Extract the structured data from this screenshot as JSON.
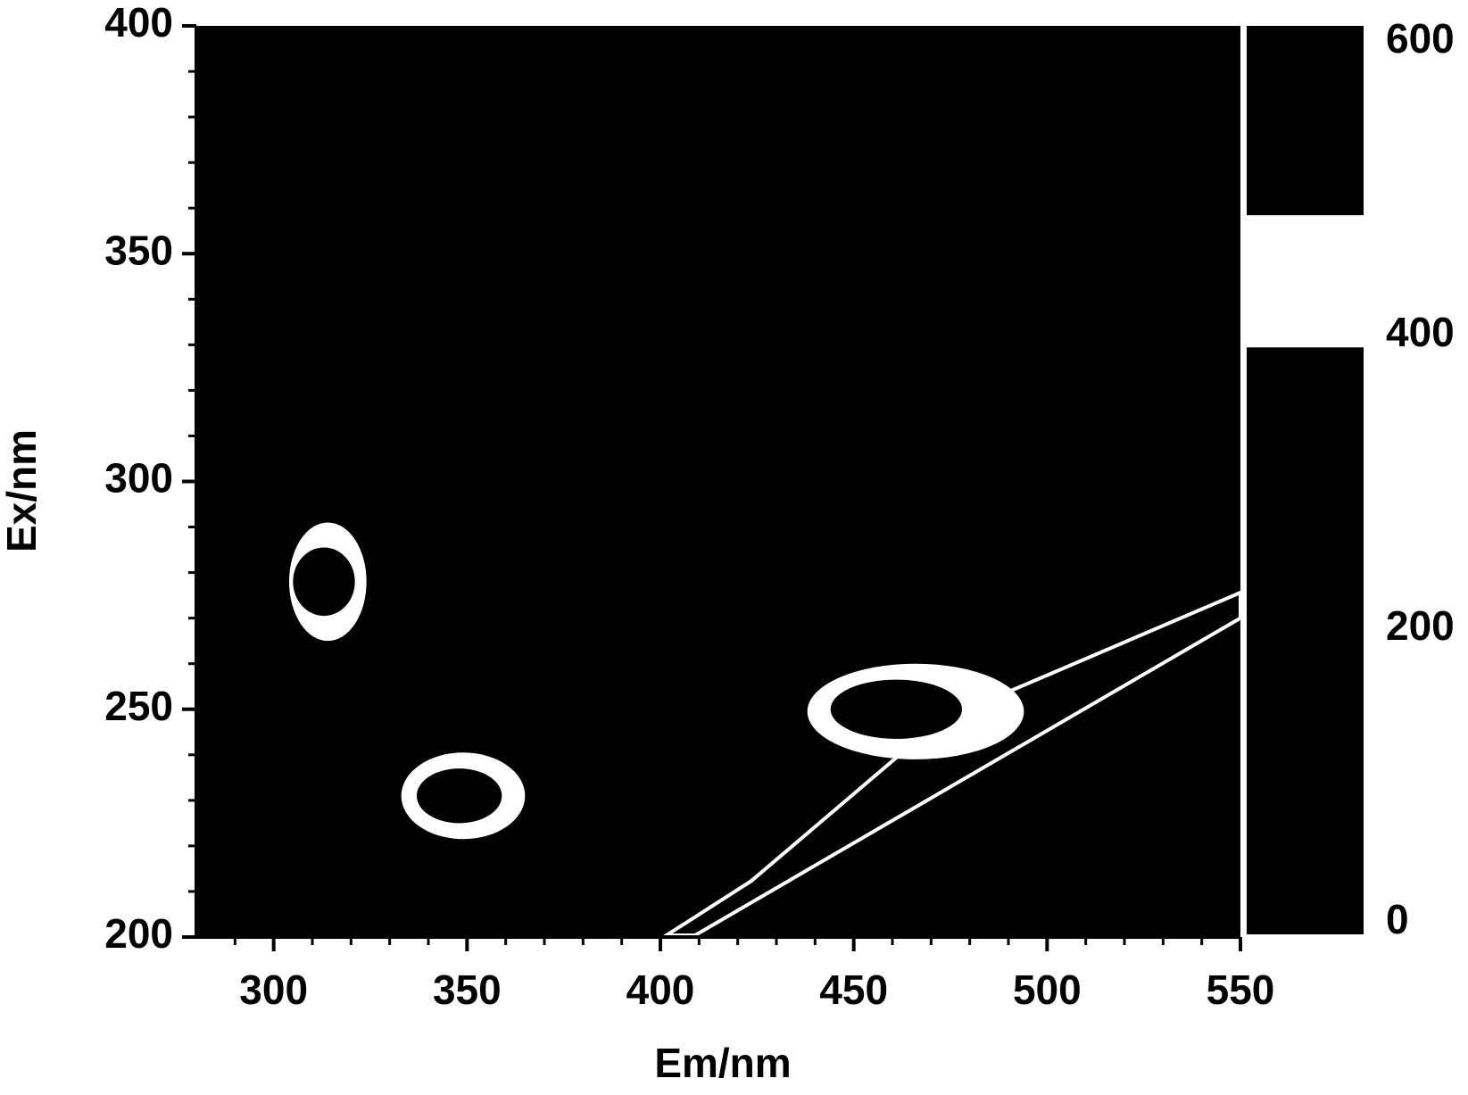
{
  "chart_data": {
    "type": "contour",
    "xlabel": "Em/nm",
    "ylabel": "Ex/nm",
    "xlim": [
      280,
      550
    ],
    "ylim": [
      200,
      400
    ],
    "xticks": [
      300,
      350,
      400,
      450,
      500,
      550
    ],
    "yticks": [
      200,
      250,
      300,
      350,
      400
    ],
    "xminorticks": [
      290,
      310,
      320,
      330,
      340,
      360,
      370,
      380,
      390,
      410,
      420,
      430,
      440,
      460,
      470,
      480,
      490,
      510,
      520,
      530,
      540
    ],
    "yminorticks": [
      210,
      220,
      230,
      240,
      260,
      270,
      280,
      290,
      310,
      320,
      330,
      340,
      360,
      370,
      380,
      390
    ],
    "background": "#000000",
    "peaks": [
      {
        "em": 314,
        "ex": 278,
        "rx": 10,
        "ry": 13,
        "color": "#ffffff",
        "inner": {
          "em": 313,
          "ex": 278,
          "rx": 8,
          "ry": 7.5,
          "color": "#000000"
        }
      },
      {
        "em": 349,
        "ex": 231,
        "rx": 16,
        "ry": 9.5,
        "color": "#ffffff",
        "inner": {
          "em": 348,
          "ex": 231,
          "rx": 11,
          "ry": 6,
          "color": "#000000"
        }
      },
      {
        "em": 466,
        "ex": 249.5,
        "rx": 28,
        "ry": 10.5,
        "color": "#ffffff",
        "inner": {
          "em": 461,
          "ex": 250,
          "rx": 17,
          "ry": 6.5,
          "color": "#000000"
        }
      }
    ],
    "scatter_band": {
      "upper": {
        "em": [
          401.6,
          423.5,
          472,
          550
        ],
        "ex": [
          200.4,
          212.3,
          247.3,
          275.6
        ]
      },
      "lower": {
        "em": [
          409,
          550
        ],
        "ex": [
          200.4,
          270
        ]
      },
      "edge_color": "#ffffff"
    },
    "clim": [
      -8,
      611
    ],
    "cticks": [
      0,
      200,
      400,
      600
    ],
    "colorbar_bands": [
      {
        "from": -8,
        "to": 392,
        "color": "#000000"
      },
      {
        "from": 392,
        "to": 482,
        "color": "#ffffff"
      },
      {
        "from": 482,
        "to": 611,
        "color": "#000000"
      }
    ]
  }
}
